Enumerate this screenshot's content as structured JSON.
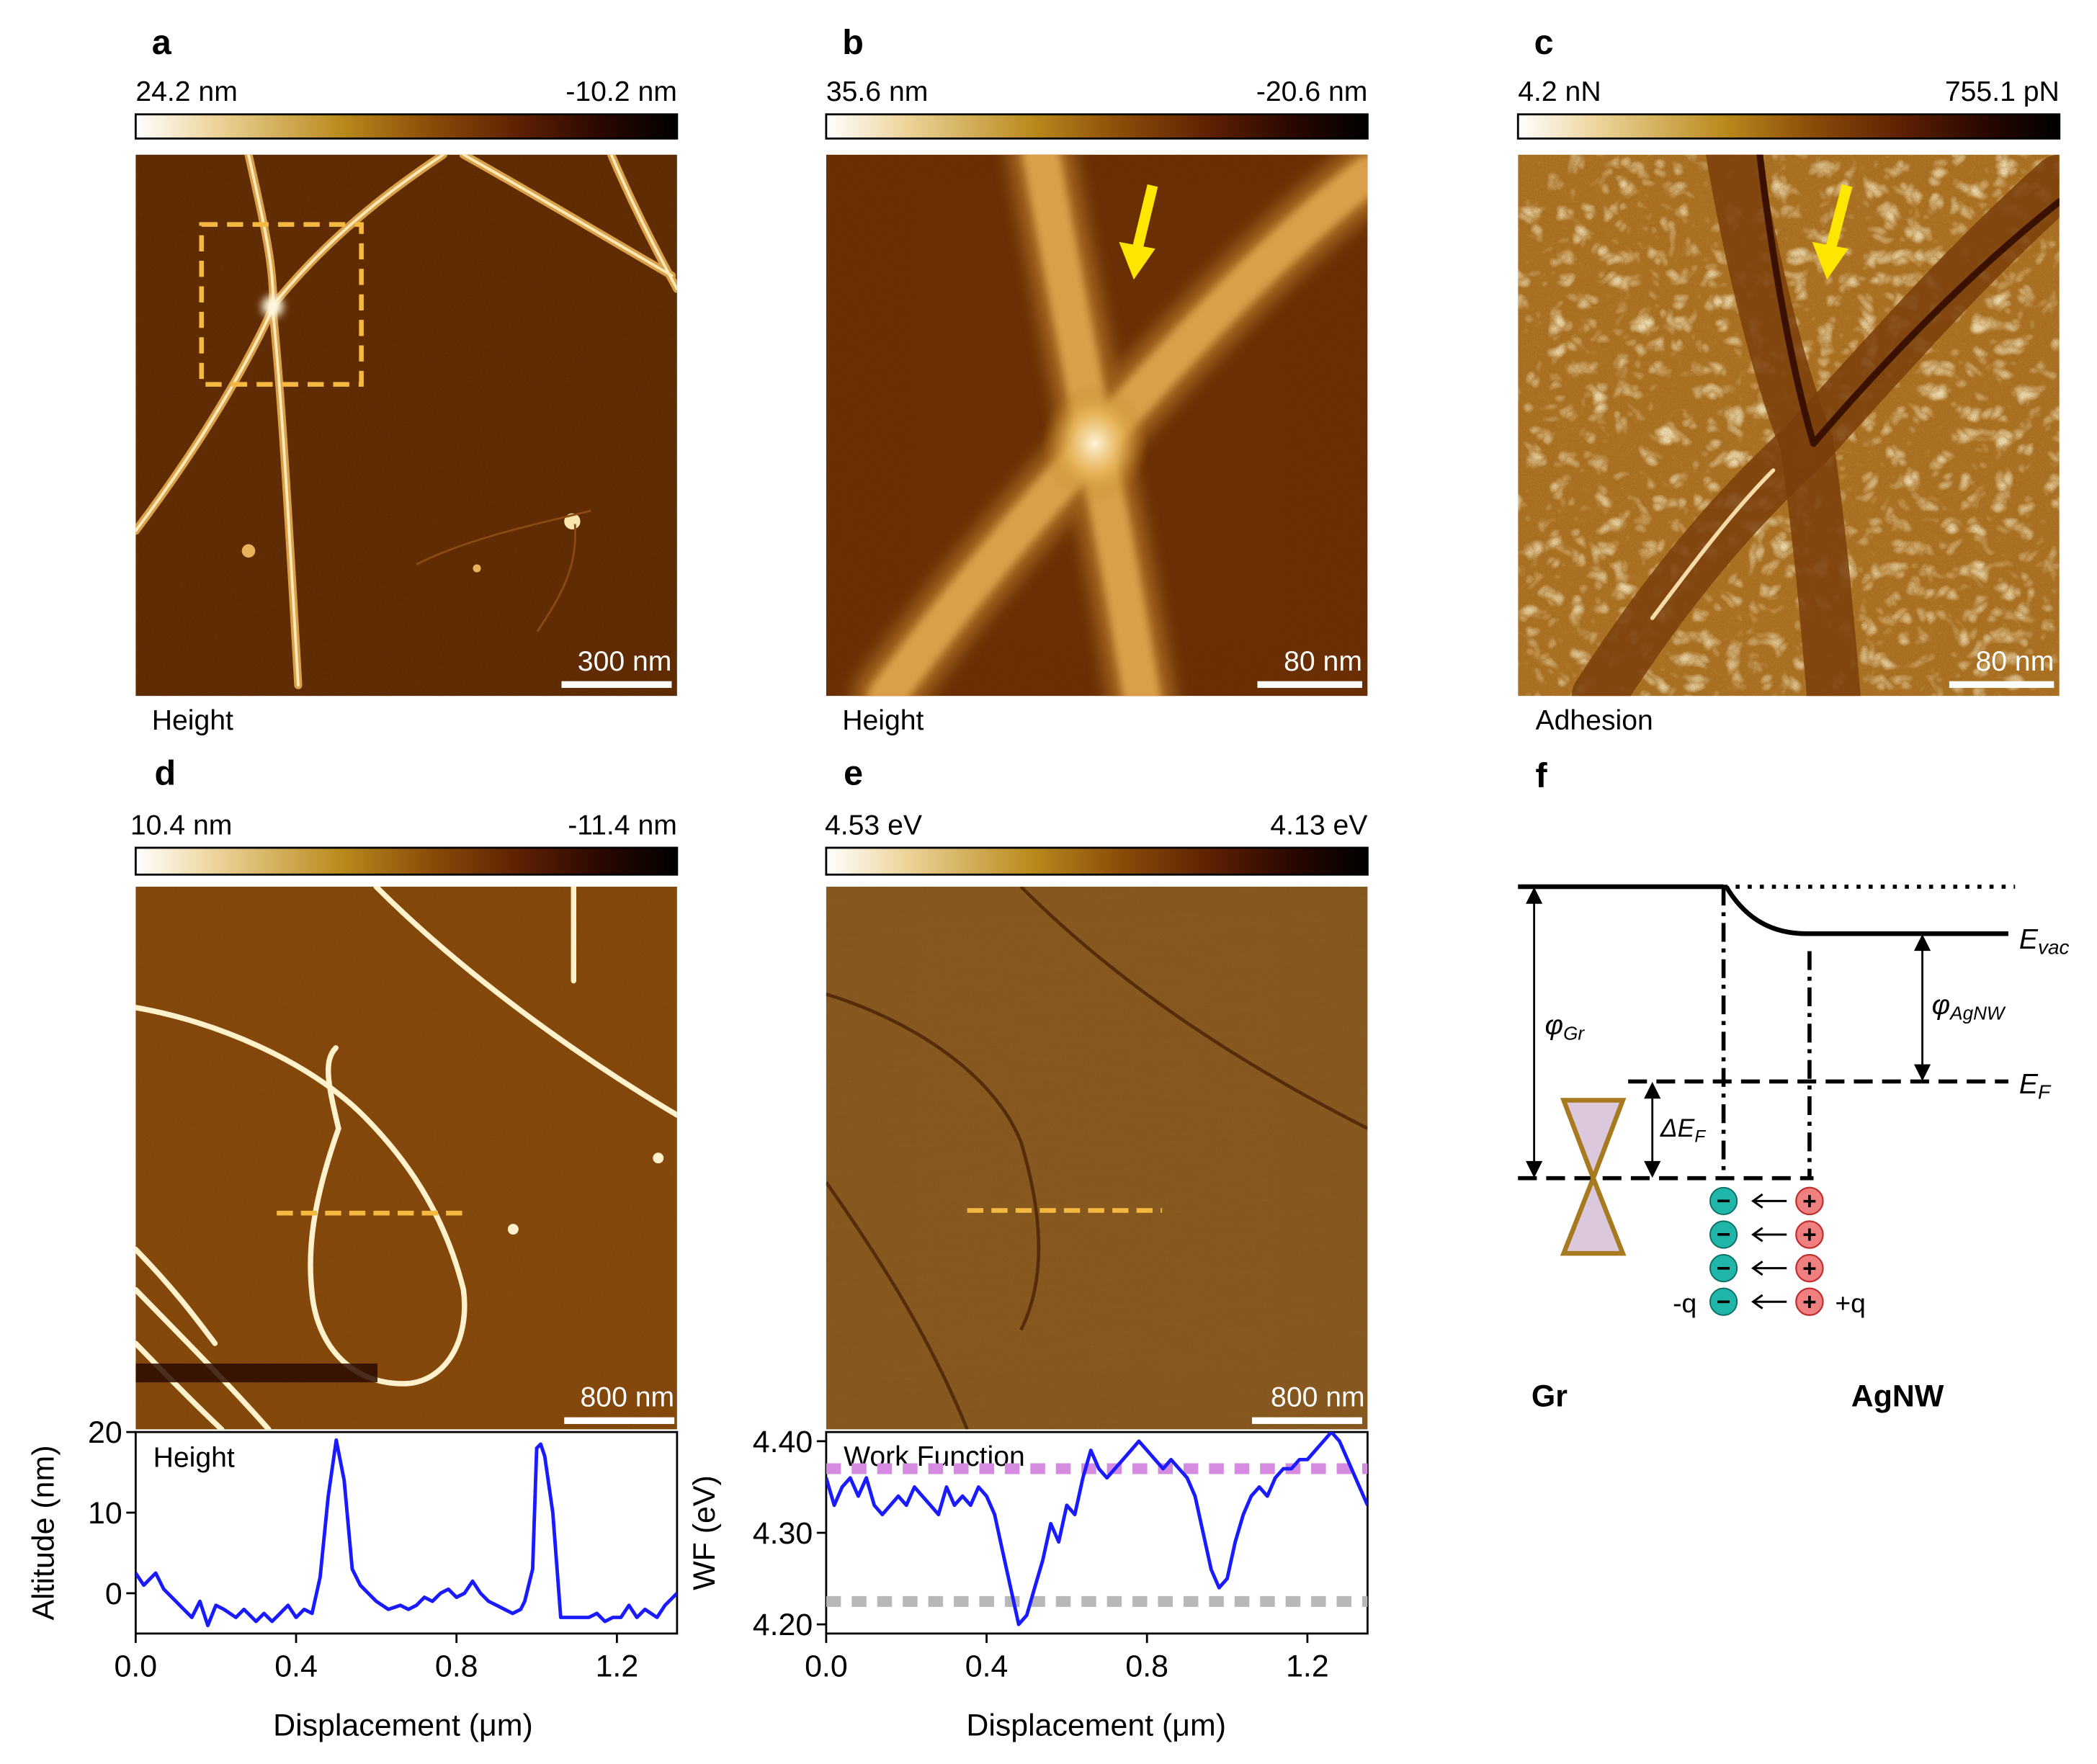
{
  "panels": {
    "a": {
      "letter": "a",
      "cbar_max": "24.2 nm",
      "cbar_min": "-10.2 nm",
      "scalebar": "300 nm",
      "channel": "Height"
    },
    "b": {
      "letter": "b",
      "cbar_max": "35.6 nm",
      "cbar_min": "-20.6 nm",
      "scalebar": "80 nm",
      "channel": "Height"
    },
    "c": {
      "letter": "c",
      "cbar_max": "4.2 nN",
      "cbar_min": "755.1 pN",
      "scalebar": "80 nm",
      "channel": "Adhesion"
    },
    "d": {
      "letter": "d",
      "cbar_max": "10.4 nm",
      "cbar_min": "-11.4 nm",
      "scalebar": "800 nm"
    },
    "e": {
      "letter": "e",
      "cbar_max": "4.53 eV",
      "cbar_min": "4.13 eV",
      "scalebar": "800 nm"
    },
    "f": {
      "letter": "f"
    }
  },
  "colors": {
    "afm_gradient": [
      "#ffffff",
      "#e8cc8a",
      "#b98a1c",
      "#8a4a08",
      "#5a1e02",
      "#2a0800",
      "#000000"
    ],
    "profile_line": "#1a1aff",
    "dashed_marker": "#f5b942",
    "arrow": "#ffe600",
    "level_high": "#d58be0",
    "level_low": "#b8b8b8",
    "electron": "#1fb5a8",
    "hole": "#f08080",
    "dirac_cone_fill": "#dcc8dc",
    "dirac_cone_stroke": "#a77a1f"
  },
  "band_diagram": {
    "e_vac": "E",
    "e_vac_sub": "vac",
    "e_f": "E",
    "e_f_sub": "F",
    "phi_gr": "φ",
    "phi_gr_sub": "Gr",
    "phi_agnw": "φ",
    "phi_agnw_sub": "AgNW",
    "delta_ef": "ΔE",
    "delta_ef_sub": "F",
    "minus_q": "-q",
    "plus_q": "+q",
    "minus_sign": "−",
    "plus_sign": "+",
    "left_material": "Gr",
    "right_material": "AgNW"
  },
  "chart_data": [
    {
      "type": "line",
      "inset_label": "Height",
      "xlabel": "Displacement (μm)",
      "ylabel": "Altitude (nm)",
      "xlim": [
        0,
        1.35
      ],
      "ylim": [
        -5,
        20
      ],
      "xticks": [
        "0.0",
        "0.4",
        "0.8",
        "1.2"
      ],
      "xtick_values": [
        0.0,
        0.4,
        0.8,
        1.2
      ],
      "yticks": [
        "0",
        "10",
        "20"
      ],
      "ytick_values": [
        0,
        10,
        20
      ],
      "x": [
        0.0,
        0.02,
        0.05,
        0.07,
        0.1,
        0.12,
        0.14,
        0.16,
        0.18,
        0.2,
        0.22,
        0.25,
        0.27,
        0.3,
        0.32,
        0.34,
        0.36,
        0.38,
        0.4,
        0.42,
        0.44,
        0.46,
        0.48,
        0.5,
        0.52,
        0.54,
        0.56,
        0.58,
        0.6,
        0.63,
        0.66,
        0.68,
        0.7,
        0.72,
        0.74,
        0.76,
        0.78,
        0.8,
        0.82,
        0.84,
        0.86,
        0.88,
        0.9,
        0.92,
        0.94,
        0.96,
        0.97,
        0.99,
        1.0,
        1.01,
        1.02,
        1.04,
        1.06,
        1.08,
        1.1,
        1.13,
        1.15,
        1.17,
        1.19,
        1.21,
        1.23,
        1.25,
        1.27,
        1.3,
        1.32,
        1.35
      ],
      "values": [
        2.5,
        1,
        2.5,
        0.5,
        -1,
        -2,
        -3,
        -1,
        -4,
        -1.5,
        -2,
        -3,
        -2,
        -3.5,
        -2.5,
        -3.5,
        -2.5,
        -1.5,
        -3,
        -2,
        -2.5,
        2,
        12,
        19,
        14,
        3,
        1,
        0,
        -1,
        -2,
        -1.5,
        -2,
        -1.5,
        -0.5,
        -1,
        0,
        0.5,
        -0.5,
        0,
        1.5,
        0,
        -1,
        -1.5,
        -2,
        -2.5,
        -2,
        -1,
        3,
        18,
        18.5,
        17,
        10,
        -3,
        -3,
        -3,
        -3,
        -2.5,
        -3.5,
        -3,
        -3,
        -1.5,
        -3,
        -2,
        -3,
        -1.5,
        0
      ]
    },
    {
      "type": "line",
      "inset_label": "Work Function",
      "xlabel": "Displacement (μm)",
      "ylabel": "WF (eV)",
      "xlim": [
        0,
        1.35
      ],
      "ylim": [
        4.19,
        4.41
      ],
      "xticks": [
        "0.0",
        "0.4",
        "0.8",
        "1.2"
      ],
      "xtick_values": [
        0.0,
        0.4,
        0.8,
        1.2
      ],
      "yticks": [
        "4.20",
        "4.30",
        "4.40"
      ],
      "ytick_values": [
        4.2,
        4.3,
        4.4
      ],
      "reference_levels": [
        4.37,
        4.225
      ],
      "x": [
        0.0,
        0.02,
        0.04,
        0.06,
        0.08,
        0.1,
        0.12,
        0.14,
        0.16,
        0.18,
        0.2,
        0.22,
        0.24,
        0.26,
        0.28,
        0.3,
        0.32,
        0.34,
        0.36,
        0.38,
        0.4,
        0.42,
        0.44,
        0.46,
        0.48,
        0.5,
        0.52,
        0.54,
        0.56,
        0.58,
        0.6,
        0.62,
        0.64,
        0.66,
        0.68,
        0.7,
        0.72,
        0.74,
        0.76,
        0.78,
        0.8,
        0.82,
        0.84,
        0.86,
        0.88,
        0.9,
        0.92,
        0.94,
        0.96,
        0.98,
        1.0,
        1.02,
        1.04,
        1.06,
        1.08,
        1.1,
        1.12,
        1.14,
        1.16,
        1.18,
        1.2,
        1.22,
        1.24,
        1.26,
        1.28,
        1.3,
        1.33,
        1.35
      ],
      "values": [
        4.36,
        4.33,
        4.35,
        4.36,
        4.34,
        4.36,
        4.33,
        4.32,
        4.33,
        4.34,
        4.33,
        4.35,
        4.34,
        4.33,
        4.32,
        4.35,
        4.33,
        4.34,
        4.33,
        4.35,
        4.34,
        4.32,
        4.28,
        4.24,
        4.2,
        4.21,
        4.24,
        4.27,
        4.31,
        4.29,
        4.33,
        4.32,
        4.36,
        4.39,
        4.37,
        4.36,
        4.37,
        4.38,
        4.39,
        4.4,
        4.39,
        4.38,
        4.37,
        4.38,
        4.37,
        4.36,
        4.34,
        4.3,
        4.26,
        4.24,
        4.25,
        4.29,
        4.32,
        4.34,
        4.35,
        4.34,
        4.36,
        4.37,
        4.37,
        4.38,
        4.38,
        4.39,
        4.4,
        4.41,
        4.4,
        4.38,
        4.35,
        4.33
      ]
    }
  ]
}
